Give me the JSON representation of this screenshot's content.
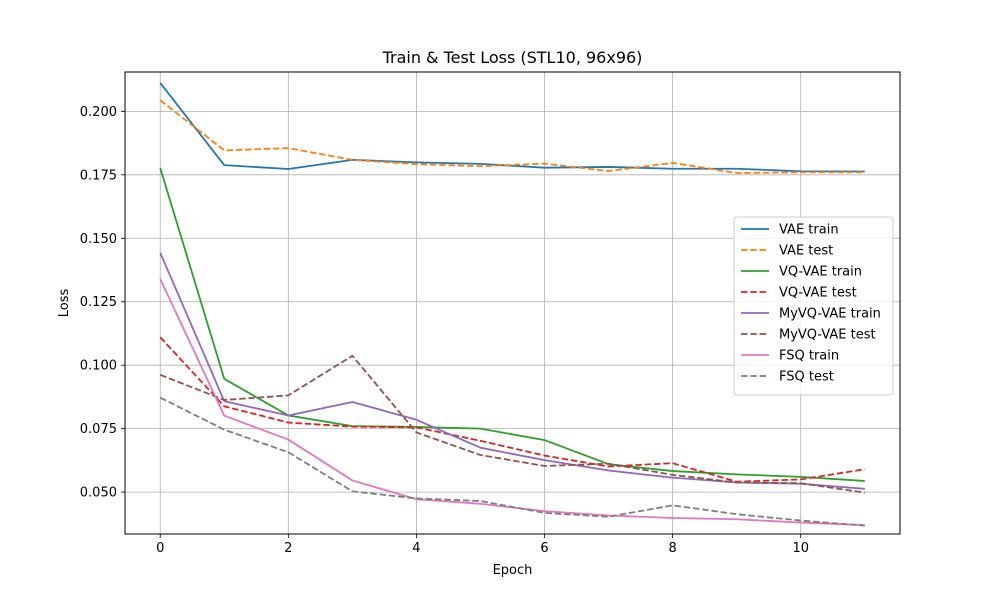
{
  "chart_data": {
    "type": "line",
    "title": "Train & Test Loss (STL10, 96x96)",
    "xlabel": "Epoch",
    "ylabel": "Loss",
    "xlim": [
      -0.55,
      11.55
    ],
    "ylim": [
      0.0335,
      0.2155
    ],
    "x_ticks": [
      0,
      2,
      4,
      6,
      8,
      10
    ],
    "y_ticks": [
      0.05,
      0.075,
      0.1,
      0.125,
      0.15,
      0.175,
      0.2
    ],
    "y_tick_labels": [
      "0.050",
      "0.075",
      "0.100",
      "0.125",
      "0.150",
      "0.175",
      "0.200"
    ],
    "grid": true,
    "legend_position": "center-right",
    "x": [
      0,
      1,
      2,
      3,
      4,
      5,
      6,
      7,
      8,
      9,
      10,
      11
    ],
    "series": [
      {
        "name": "VAE train",
        "color": "#1f77b4",
        "dash": "solid",
        "values": [
          0.2112,
          0.1788,
          0.1773,
          0.1809,
          0.1799,
          0.1793,
          0.1778,
          0.1781,
          0.1774,
          0.1774,
          0.1764,
          0.1763
        ]
      },
      {
        "name": "VAE test",
        "color": "#ff7f0e",
        "dash": "dashed",
        "values": [
          0.2044,
          0.1846,
          0.1855,
          0.1809,
          0.1792,
          0.1784,
          0.1794,
          0.1765,
          0.1797,
          0.1757,
          0.176,
          0.176
        ]
      },
      {
        "name": "VQ-VAE train",
        "color": "#2ca02c",
        "dash": "solid",
        "values": [
          0.1777,
          0.0946,
          0.0802,
          0.076,
          0.0757,
          0.075,
          0.0705,
          0.061,
          0.0583,
          0.057,
          0.056,
          0.0544
        ]
      },
      {
        "name": "VQ-VAE test",
        "color": "#d62728",
        "dash": "dashed",
        "values": [
          0.111,
          0.0838,
          0.0774,
          0.0758,
          0.0755,
          0.0702,
          0.0644,
          0.0601,
          0.0614,
          0.0541,
          0.055,
          0.059
        ]
      },
      {
        "name": "MyVQ-VAE train",
        "color": "#9467bd",
        "dash": "solid",
        "values": [
          0.1443,
          0.0858,
          0.0802,
          0.0855,
          0.0785,
          0.0675,
          0.0626,
          0.0585,
          0.0557,
          0.0538,
          0.0533,
          0.0513
        ]
      },
      {
        "name": "MyVQ-VAE test",
        "color": "#8c564b",
        "dash": "dashed",
        "values": [
          0.0962,
          0.0863,
          0.0881,
          0.1037,
          0.0735,
          0.0646,
          0.0603,
          0.0612,
          0.0568,
          0.0538,
          0.0535,
          0.0498
        ]
      },
      {
        "name": "FSQ train",
        "color": "#e377c2",
        "dash": "solid",
        "values": [
          0.134,
          0.0801,
          0.0707,
          0.0546,
          0.0472,
          0.0454,
          0.0425,
          0.0408,
          0.0398,
          0.0393,
          0.038,
          0.037
        ]
      },
      {
        "name": "FSQ test",
        "color": "#7f7f7f",
        "dash": "dashed",
        "values": [
          0.0872,
          0.0746,
          0.0657,
          0.0503,
          0.0475,
          0.0465,
          0.0418,
          0.0403,
          0.0448,
          0.0413,
          0.0388,
          0.0368
        ]
      }
    ]
  }
}
